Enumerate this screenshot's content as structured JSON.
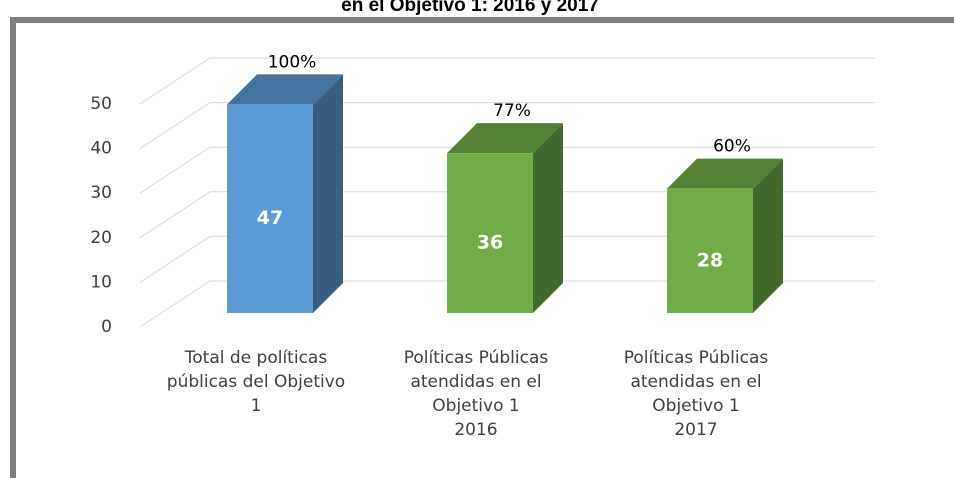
{
  "chart_data": {
    "type": "bar",
    "title": "en el Objetivo 1: 2016 y 2017",
    "categories": [
      "Total de políticas\npúblicas del Objetivo\n1",
      "Políticas Públicas\natendidas en el\nObjetivo 1\n2016",
      "Políticas Públicas\natendidas en el\nObjetivo 1\n2017"
    ],
    "values": [
      47,
      36,
      28
    ],
    "annotations": [
      "100%",
      "77%",
      "60%"
    ],
    "colors": [
      "#5b9bd5",
      "#70ad47",
      "#70ad47"
    ],
    "ylim": [
      0,
      50
    ],
    "yticks": [
      0,
      10,
      20,
      30,
      40,
      50
    ],
    "grid": true
  }
}
